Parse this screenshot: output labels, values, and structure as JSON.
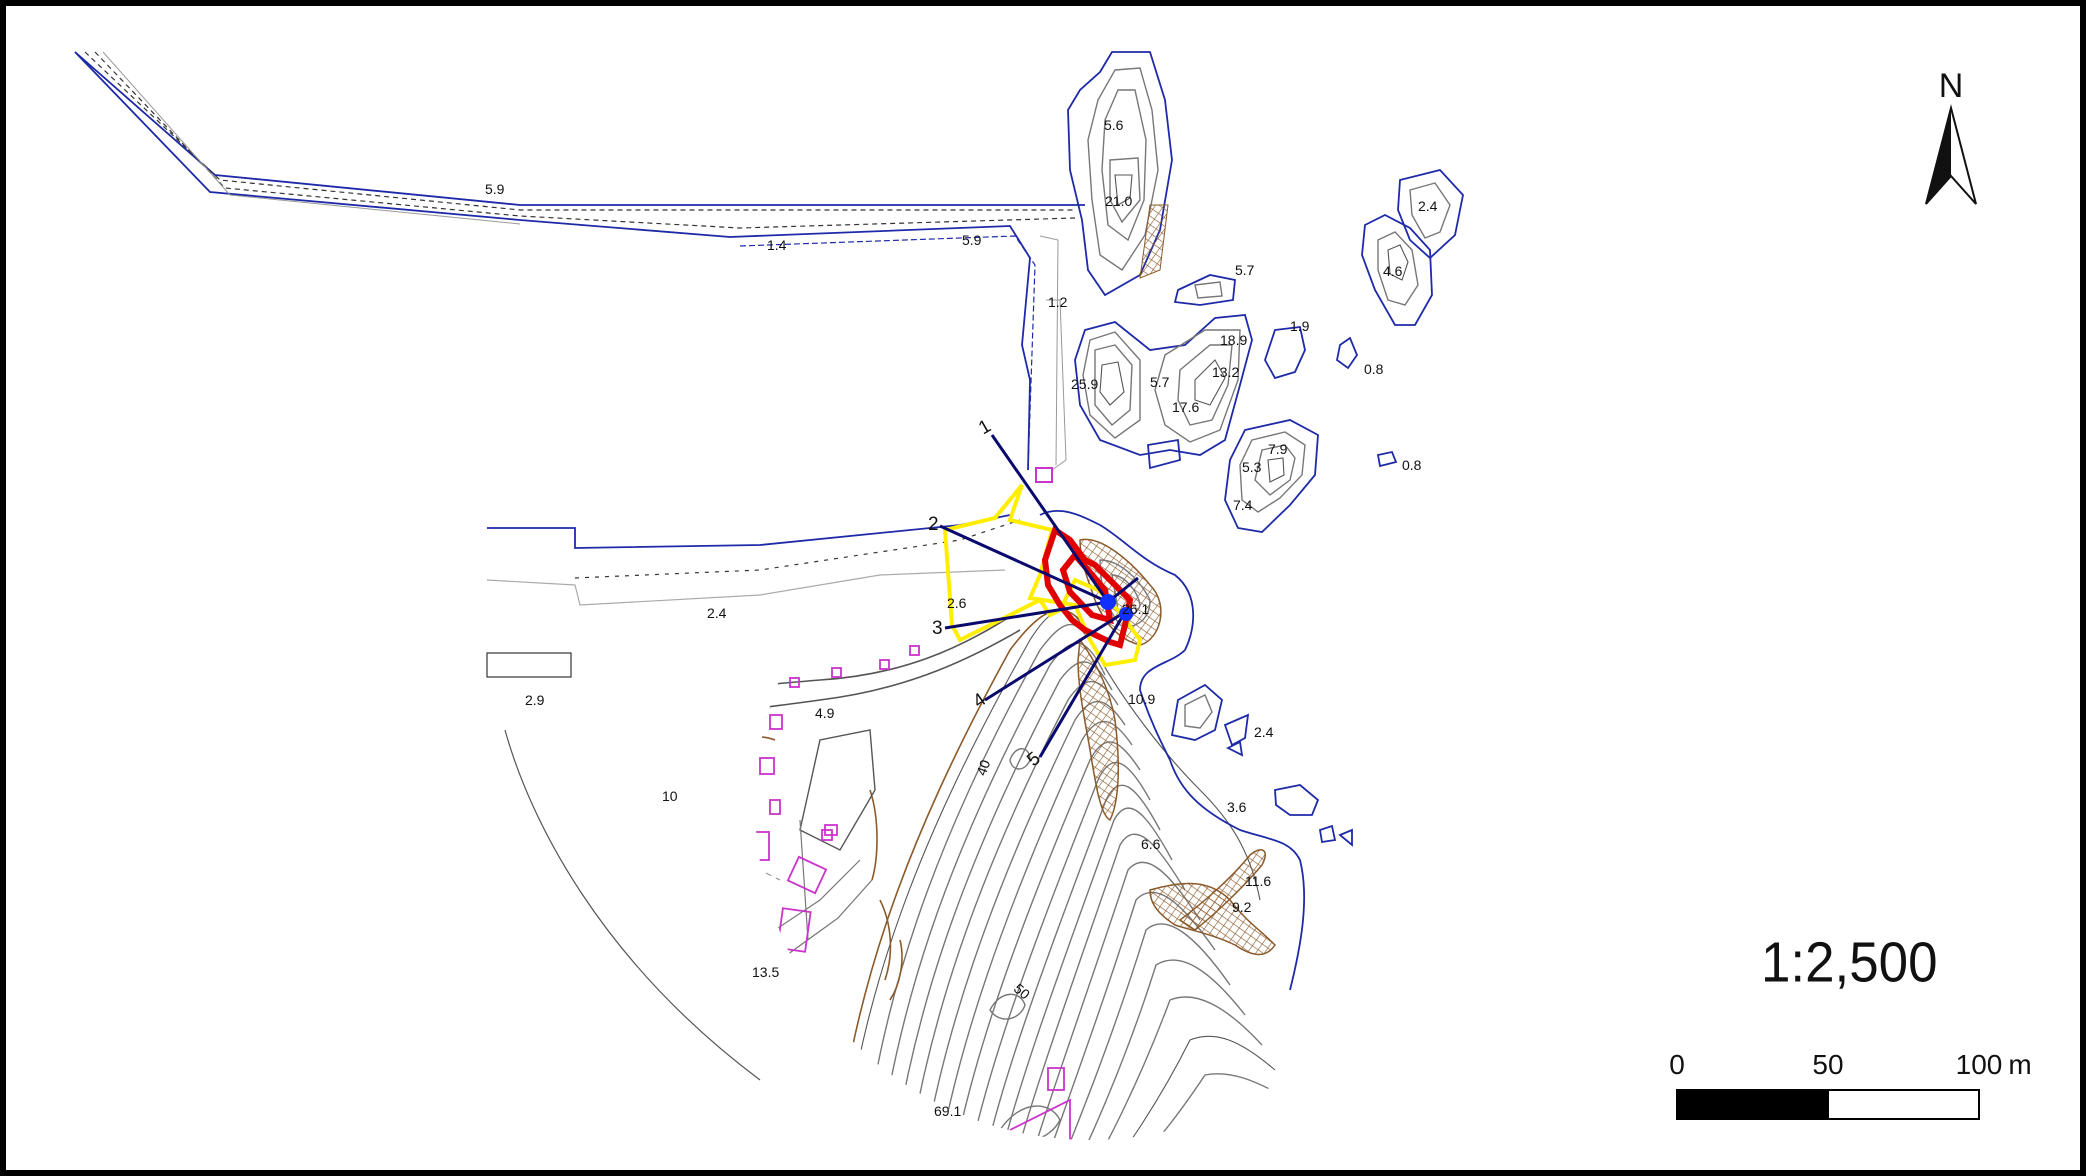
{
  "north_arrow": {
    "label": "N"
  },
  "scale_ratio": "1:2,500",
  "scale_bar": {
    "tick_0": "0",
    "tick_50": "50",
    "tick_100": "100",
    "unit": "m"
  },
  "elevation_labels": {
    "seawall_top_left": "5.9",
    "seawall_mid": "1.4",
    "seawall_right": "5.9",
    "pier": "1.2",
    "island_a_top": "5.6",
    "island_a_main": "21.0",
    "islet_a": "5.7",
    "islet_b": "1.9",
    "islet_c": "0.8",
    "islet_d": "0.8",
    "island_ne_top": "2.4",
    "island_ne_bottom": "4.6",
    "island_b_1": "25.9",
    "island_b_2": "5.7",
    "island_b_3": "17.6",
    "island_b_4": "18.9",
    "island_b_5": "13.2",
    "island_c_1": "7.9",
    "island_c_2": "5.3",
    "island_c_3": "7.4",
    "harbor_1": "2.4",
    "harbor_2": "2.6",
    "harbor_3": "2.9",
    "road": "4.9",
    "village": "10",
    "village_south": "13.5",
    "contour_40": "40",
    "contour_50": "50",
    "summit": "69.1",
    "headland": "26.1",
    "coast_1": "10.9",
    "coast_2": "2.4",
    "coast_3": "3.6",
    "coast_4": "6.6",
    "coast_5": "11.6",
    "coast_6": "9.2"
  },
  "section_lines": [
    "1",
    "2",
    "3",
    "4",
    "5"
  ],
  "colors": {
    "shoreline": "#1e2aa8",
    "section_line": "#0a0a6e",
    "survey_area_yellow": "#ffee00",
    "survey_area_red": "#e00000",
    "building": "#cc33cc",
    "cliff_hatch": "#8b5a2b",
    "contour": "#777777"
  }
}
